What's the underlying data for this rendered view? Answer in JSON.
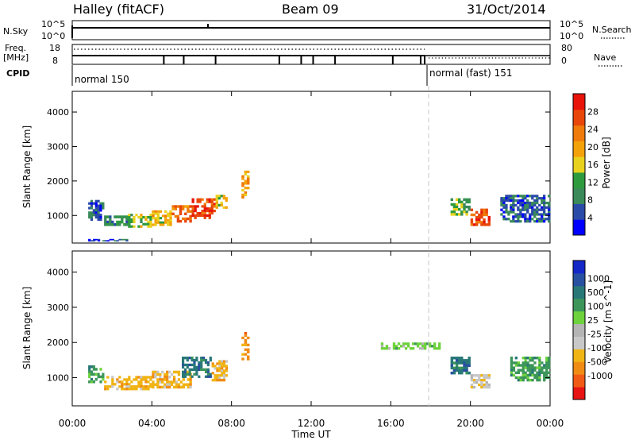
{
  "header": {
    "station": "Halley (fitACF)",
    "beam": "Beam 09",
    "date": "31/Oct/2014"
  },
  "top_panel": {
    "left_label": "N.Sky",
    "right_label": "N.Search",
    "left_ticks": [
      "10^5",
      "10^0"
    ],
    "right_ticks": [
      "10^5",
      "10^0"
    ]
  },
  "freq_panel": {
    "left_label_line1": "Freq.",
    "left_label_line2": "[MHz]",
    "left_ticks": [
      "18",
      "8"
    ],
    "right_ticks": [
      "80",
      "0"
    ],
    "right_label": "Nave",
    "cpid_label": "CPID",
    "modes": [
      {
        "name": "normal 150",
        "start_hour": 0
      },
      {
        "name": "normal (fast) 151",
        "start_hour": 17.9
      }
    ],
    "cpid_change_hours": [
      4.6,
      5.6,
      7.2,
      10.4,
      11.5,
      12.1,
      13.2,
      16.1,
      17.5,
      17.7
    ]
  },
  "colors": {
    "power": [
      "#0000ff",
      "#2a4aa8",
      "#3a8a5a",
      "#2e9a3e",
      "#e8d21e",
      "#f4a20a",
      "#f07a0a",
      "#e8460a",
      "#e8140a"
    ],
    "velocity": [
      "#e81414",
      "#f05a14",
      "#f08c14",
      "#f0b414",
      "#c8c8c8",
      "#b4b4b4",
      "#6ed23c",
      "#3c965a",
      "#287878",
      "#2850a0",
      "#1428c8"
    ]
  },
  "chart_data": [
    {
      "type": "heatmap",
      "ylabel": "Slant Range [km]",
      "ylim": [
        200,
        4600
      ],
      "yticks": [
        "1000",
        "2000",
        "3000",
        "4000"
      ],
      "colorbar_label": "Power [dB]",
      "colorbar_ticks": [
        "4",
        "8",
        "12",
        "16",
        "20",
        "24",
        "28"
      ],
      "colorbar_range": [
        0,
        32
      ],
      "regions": [
        {
          "t0": 0.8,
          "t1": 1.6,
          "r0": 850,
          "r1": 1450,
          "value": 6
        },
        {
          "t0": 1.6,
          "t1": 2.8,
          "r0": 700,
          "r1": 1000,
          "value": 10
        },
        {
          "t0": 2.8,
          "t1": 4.0,
          "r0": 650,
          "r1": 1050,
          "value": 14
        },
        {
          "t0": 4.0,
          "t1": 5.0,
          "r0": 700,
          "r1": 1150,
          "value": 18
        },
        {
          "t0": 5.0,
          "t1": 6.0,
          "r0": 800,
          "r1": 1300,
          "value": 24
        },
        {
          "t0": 6.0,
          "t1": 7.2,
          "r0": 900,
          "r1": 1500,
          "value": 27
        },
        {
          "t0": 7.2,
          "t1": 7.8,
          "r0": 1200,
          "r1": 1600,
          "value": 16
        },
        {
          "t0": 8.5,
          "t1": 8.9,
          "r0": 1500,
          "r1": 2300,
          "value": 20
        },
        {
          "t0": 19.0,
          "t1": 20.0,
          "r0": 1000,
          "r1": 1500,
          "value": 12
        },
        {
          "t0": 20.0,
          "t1": 21.0,
          "r0": 700,
          "r1": 1200,
          "value": 26
        },
        {
          "t0": 21.5,
          "t1": 24.0,
          "r0": 800,
          "r1": 1600,
          "value": 6
        },
        {
          "t0": 0.8,
          "t1": 2.8,
          "r0": 250,
          "r1": 320,
          "value": 5
        }
      ]
    },
    {
      "type": "heatmap",
      "ylabel": "Slant Range [km]",
      "ylim": [
        200,
        4600
      ],
      "yticks": [
        "1000",
        "2000",
        "3000",
        "4000"
      ],
      "colorbar_label": "Velocity [m s^-1]",
      "colorbar_ticks": [
        "-1000",
        "-500",
        "-100",
        "-25",
        "25",
        "100",
        "500",
        "1000"
      ],
      "regions": [
        {
          "t0": 0.8,
          "t1": 1.6,
          "r0": 850,
          "r1": 1350,
          "value": "100"
        },
        {
          "t0": 1.6,
          "t1": 4.0,
          "r0": 650,
          "r1": 1050,
          "value": "-100"
        },
        {
          "t0": 4.0,
          "t1": 6.0,
          "r0": 700,
          "r1": 1200,
          "value": "-100"
        },
        {
          "t0": 5.5,
          "t1": 7.0,
          "r0": 1000,
          "r1": 1600,
          "value": "500"
        },
        {
          "t0": 7.0,
          "t1": 7.8,
          "r0": 900,
          "r1": 1500,
          "value": "-100"
        },
        {
          "t0": 8.5,
          "t1": 8.9,
          "r0": 1500,
          "r1": 2300,
          "value": "-500"
        },
        {
          "t0": 15.5,
          "t1": 18.5,
          "r0": 1800,
          "r1": 2000,
          "value": "25"
        },
        {
          "t0": 19.0,
          "t1": 20.0,
          "r0": 1100,
          "r1": 1600,
          "value": "500"
        },
        {
          "t0": 20.0,
          "t1": 21.0,
          "r0": 700,
          "r1": 1100,
          "value": "-25"
        },
        {
          "t0": 22.0,
          "t1": 24.0,
          "r0": 900,
          "r1": 1600,
          "value": "100"
        }
      ]
    }
  ],
  "x_axis": {
    "label": "Time UT",
    "ticks": [
      "00:00",
      "04:00",
      "08:00",
      "12:00",
      "16:00",
      "20:00",
      "00:00"
    ],
    "range_hours": [
      0,
      24
    ],
    "mode_change_hour": 17.9
  }
}
